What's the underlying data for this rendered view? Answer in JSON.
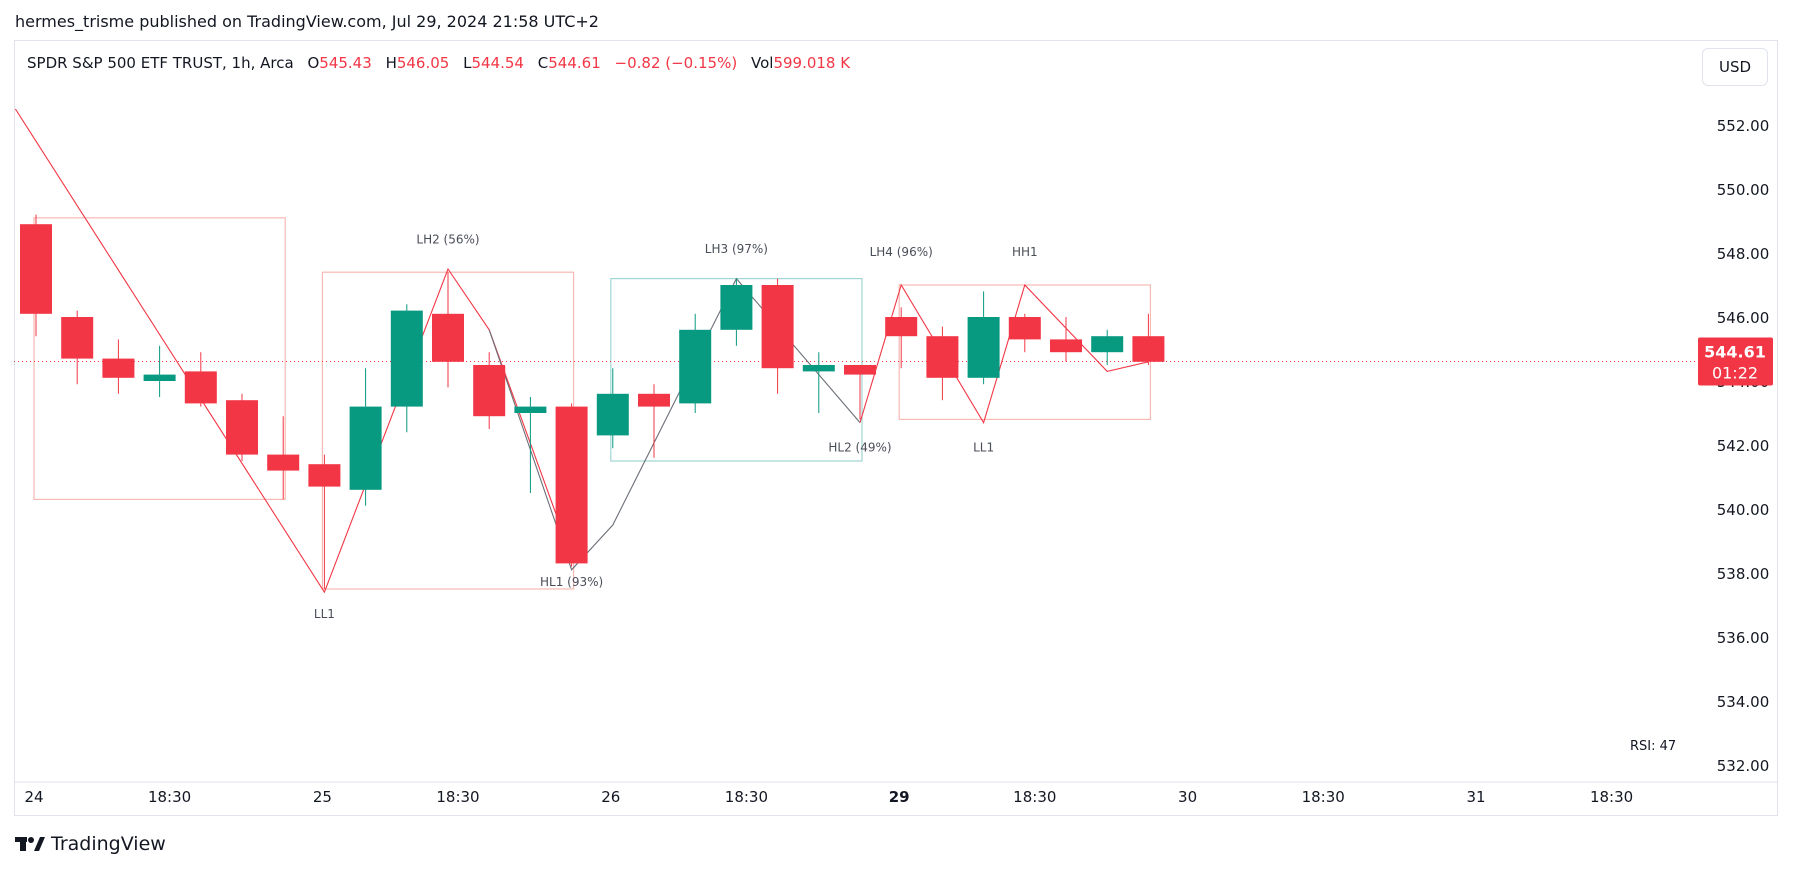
{
  "header": {
    "published": "hermes_trisme published on TradingView.com, Jul 29, 2024 21:58 UTC+2"
  },
  "legend": {
    "symbol": "SPDR S&P 500 ETF TRUST, 1h, Arca",
    "o_label": "O",
    "o_value": "545.43",
    "h_label": "H",
    "h_value": "546.05",
    "l_label": "L",
    "l_value": "544.54",
    "c_label": "C",
    "c_value": "544.61",
    "change": "−0.82 (−0.15%)",
    "vol_label": "Vol",
    "vol_value": "599.018 K"
  },
  "currency_button": "USD",
  "price_tag": {
    "price": "544.61",
    "countdown": "01:22"
  },
  "indicator_label": "RSI: 47",
  "brand": "TradingView",
  "colors": {
    "up": "#089981",
    "down": "#f23645",
    "box_red": "#f7b9b3",
    "box_teal": "#9fd6d3",
    "zigzag_red": "#f23645",
    "zigzag_gray": "#6b6f78"
  },
  "chart_data": {
    "type": "candlestick",
    "title": "SPDR S&P 500 ETF TRUST, 1h, Arca",
    "ylim": [
      531.5,
      553.5
    ],
    "y_ticks": [
      "552.00",
      "550.00",
      "548.00",
      "546.00",
      "544.00",
      "542.00",
      "540.00",
      "538.00",
      "536.00",
      "534.00",
      "532.00"
    ],
    "x_ticks": [
      {
        "label": "24",
        "x": 0,
        "bold": false
      },
      {
        "label": "18:30",
        "x": 3,
        "bold": false
      },
      {
        "label": "25",
        "x": 7,
        "bold": false
      },
      {
        "label": "18:30",
        "x": 10,
        "bold": false
      },
      {
        "label": "26",
        "x": 14,
        "bold": false
      },
      {
        "label": "18:30",
        "x": 17,
        "bold": false
      },
      {
        "label": "29",
        "x": 21,
        "bold": true
      },
      {
        "label": "18:30",
        "x": 24,
        "bold": false
      },
      {
        "label": "30",
        "x": 28,
        "bold": false
      },
      {
        "label": "18:30",
        "x": 31,
        "bold": false
      },
      {
        "label": "31",
        "x": 35,
        "bold": false
      },
      {
        "label": "18:30",
        "x": 38,
        "bold": false
      }
    ],
    "candles": [
      {
        "o": 548.9,
        "h": 549.2,
        "l": 545.4,
        "c": 546.1
      },
      {
        "o": 546.0,
        "h": 546.2,
        "l": 543.9,
        "c": 544.7
      },
      {
        "o": 544.7,
        "h": 545.3,
        "l": 543.6,
        "c": 544.1
      },
      {
        "o": 544.0,
        "h": 545.1,
        "l": 543.5,
        "c": 544.2
      },
      {
        "o": 544.3,
        "h": 544.9,
        "l": 543.2,
        "c": 543.3
      },
      {
        "o": 543.4,
        "h": 543.6,
        "l": 541.5,
        "c": 541.7
      },
      {
        "o": 541.7,
        "h": 542.9,
        "l": 540.3,
        "c": 541.2
      },
      {
        "o": 541.4,
        "h": 541.7,
        "l": 537.5,
        "c": 540.7
      },
      {
        "o": 540.6,
        "h": 544.4,
        "l": 540.1,
        "c": 543.2
      },
      {
        "o": 543.2,
        "h": 546.4,
        "l": 542.4,
        "c": 546.2
      },
      {
        "o": 546.1,
        "h": 547.4,
        "l": 543.8,
        "c": 544.6
      },
      {
        "o": 544.5,
        "h": 544.9,
        "l": 542.5,
        "c": 542.9
      },
      {
        "o": 543.0,
        "h": 543.5,
        "l": 540.5,
        "c": 543.2
      },
      {
        "o": 543.2,
        "h": 543.3,
        "l": 538.2,
        "c": 538.3
      },
      {
        "o": 542.3,
        "h": 544.4,
        "l": 541.9,
        "c": 543.6
      },
      {
        "o": 543.6,
        "h": 543.9,
        "l": 541.6,
        "c": 543.2
      },
      {
        "o": 543.3,
        "h": 546.1,
        "l": 543.0,
        "c": 545.6
      },
      {
        "o": 545.6,
        "h": 547.2,
        "l": 545.1,
        "c": 547.0
      },
      {
        "o": 547.0,
        "h": 547.2,
        "l": 543.6,
        "c": 544.4
      },
      {
        "o": 544.3,
        "h": 544.9,
        "l": 543.0,
        "c": 544.5
      },
      {
        "o": 544.5,
        "h": 544.5,
        "l": 542.8,
        "c": 544.2
      },
      {
        "o": 546.0,
        "h": 546.3,
        "l": 544.4,
        "c": 545.4
      },
      {
        "o": 545.4,
        "h": 545.7,
        "l": 543.4,
        "c": 544.1
      },
      {
        "o": 544.1,
        "h": 546.8,
        "l": 543.9,
        "c": 546.0
      },
      {
        "o": 546.0,
        "h": 546.1,
        "l": 544.9,
        "c": 545.3
      },
      {
        "o": 545.3,
        "h": 546.0,
        "l": 544.6,
        "c": 544.9
      },
      {
        "o": 544.9,
        "h": 545.6,
        "l": 544.5,
        "c": 545.4
      },
      {
        "o": 545.4,
        "h": 546.1,
        "l": 544.5,
        "c": 544.6
      }
    ],
    "last_price": 544.61,
    "zigzag_red": [
      {
        "x": -0.5,
        "y": 552.5
      },
      {
        "x": 7,
        "y": 537.4
      },
      {
        "x": 10,
        "y": 547.5
      },
      {
        "x": 11,
        "y": 545.6
      },
      {
        "x": 13,
        "y": 538.5
      }
    ],
    "zigzag_gray": [
      {
        "x": 11,
        "y": 545.6
      },
      {
        "x": 13,
        "y": 538.1
      },
      {
        "x": 14,
        "y": 539.5
      },
      {
        "x": 17,
        "y": 547.2
      },
      {
        "x": 20,
        "y": 542.7
      }
    ],
    "zigzag_red2": [
      {
        "x": 20,
        "y": 542.7
      },
      {
        "x": 21,
        "y": 547.0
      },
      {
        "x": 23,
        "y": 542.7
      },
      {
        "x": 24,
        "y": 547.0
      },
      {
        "x": 26,
        "y": 544.3
      },
      {
        "x": 27,
        "y": 544.6
      }
    ],
    "boxes": [
      {
        "x1": 0,
        "x2": 6,
        "y1": 549.1,
        "y2": 540.3,
        "color": "red"
      },
      {
        "x1": 7,
        "x2": 13,
        "y1": 547.4,
        "y2": 537.5,
        "color": "red"
      },
      {
        "x1": 14,
        "x2": 20,
        "y1": 547.2,
        "y2": 541.5,
        "color": "teal"
      },
      {
        "x1": 21,
        "x2": 27,
        "y1": 547.0,
        "y2": 542.8,
        "color": "red"
      }
    ],
    "annotations": [
      {
        "text": "LH2 (56%)",
        "x": 10,
        "y": 548.3
      },
      {
        "text": "LL1",
        "x": 7,
        "y": 536.6
      },
      {
        "text": "HL1 (93%)",
        "x": 13,
        "y": 537.6
      },
      {
        "text": "LH3 (97%)",
        "x": 17,
        "y": 548.0
      },
      {
        "text": "HL2 (49%)",
        "x": 20,
        "y": 541.8
      },
      {
        "text": "LH4 (96%)",
        "x": 21,
        "y": 547.9
      },
      {
        "text": "HH1",
        "x": 24,
        "y": 547.9
      },
      {
        "text": "LL1",
        "x": 23,
        "y": 541.8
      }
    ]
  }
}
